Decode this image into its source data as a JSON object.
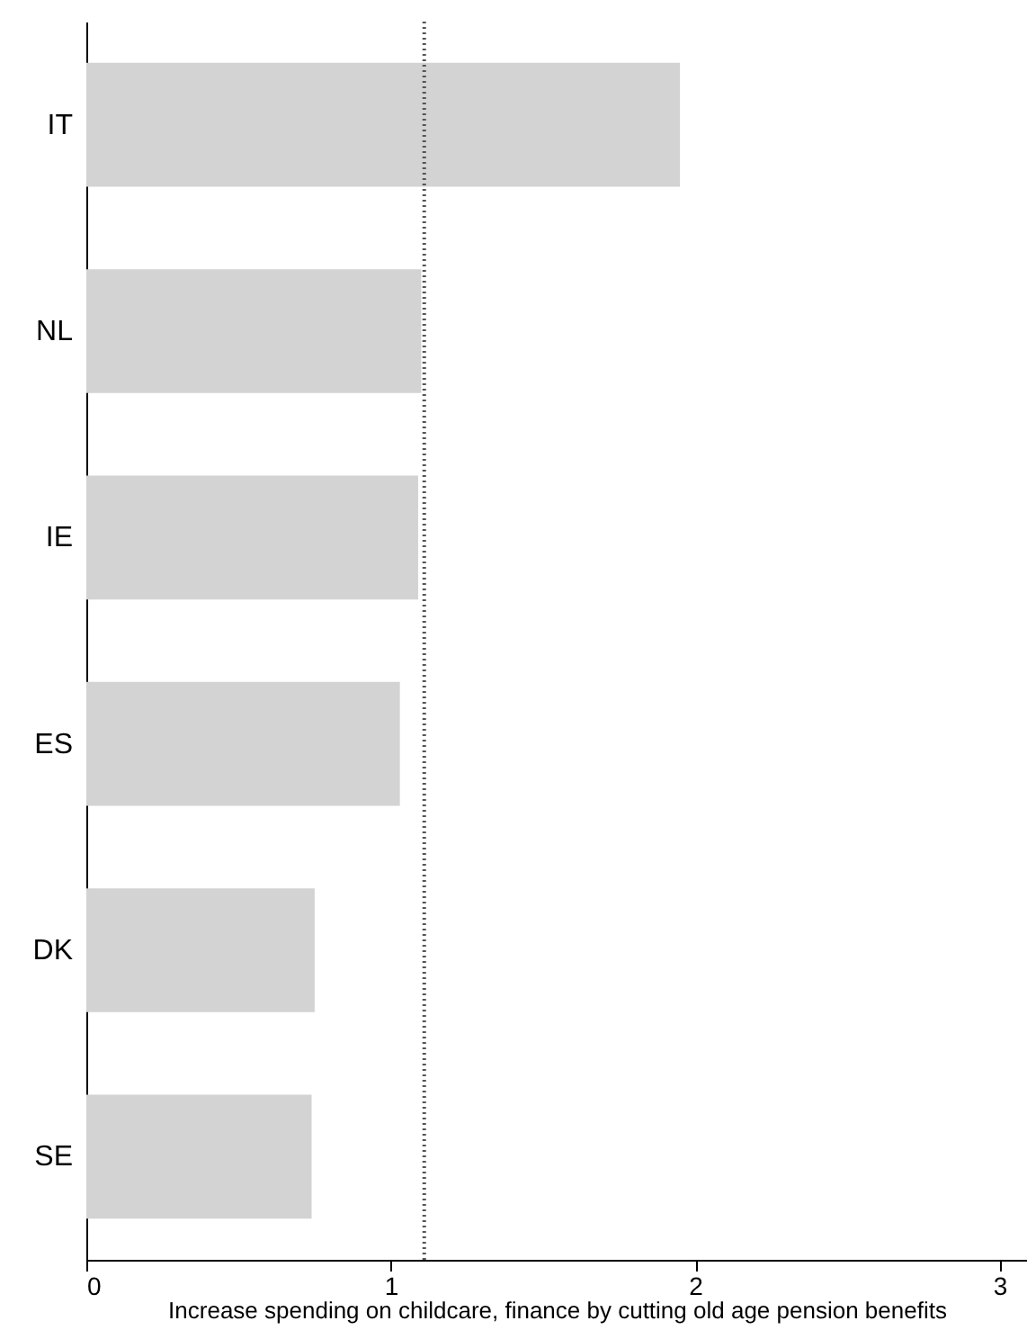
{
  "chart_data": {
    "type": "bar",
    "orientation": "horizontal",
    "xlabel": "Increase spending on childcare, finance by cutting old age pension benefits",
    "categories": [
      "IT",
      "NL",
      "IE",
      "ES",
      "DK",
      "SE"
    ],
    "values": [
      1.95,
      1.1,
      1.09,
      1.03,
      0.75,
      0.74
    ],
    "color": "#d3d3d3",
    "xlim": [
      0,
      3.09
    ],
    "xticks": [
      0,
      1,
      2,
      3
    ],
    "grid": false,
    "ref_lines": [
      {
        "axis": "x",
        "value": 1.11,
        "color": "#555555",
        "line_style": "dotted"
      }
    ]
  }
}
